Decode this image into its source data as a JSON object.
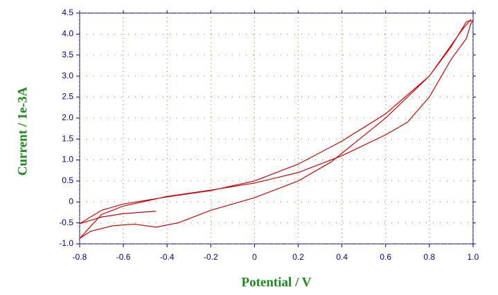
{
  "chart_data": {
    "type": "line",
    "x_label": "Potential / V",
    "y_label": "Current / 1e-3A",
    "xlim": [
      -0.8,
      1.0
    ],
    "ylim": [
      -1.0,
      4.5
    ],
    "xticks": [
      -0.8,
      -0.6,
      -0.4,
      -0.2,
      0,
      0.2,
      0.4,
      0.6,
      0.8,
      {
        "value": 1,
        "label": "1.0"
      }
    ],
    "yticks": [
      {
        "value": -1,
        "label": "-1.0"
      },
      -0.5,
      0,
      0.5,
      {
        "value": 1,
        "label": "1.0"
      },
      1.5,
      {
        "value": 2,
        "label": "2.0"
      },
      2.5,
      {
        "value": 3,
        "label": "3.0"
      },
      3.5,
      {
        "value": 4,
        "label": "4.0"
      },
      4.5
    ],
    "grid": true,
    "series": [
      {
        "color": "#cc0000",
        "x": [
          -0.45,
          -0.6,
          -0.7,
          -0.8,
          -0.7,
          -0.6,
          -0.4,
          -0.2,
          0,
          0.2,
          0.4,
          0.6,
          0.8,
          0.9,
          0.97,
          1.0,
          0.99,
          0.97,
          0.9,
          0.8,
          0.7,
          0.6,
          0.4,
          0.2,
          0,
          -0.2,
          -0.4,
          -0.6,
          -0.7,
          -0.8,
          -0.75,
          -0.65,
          -0.55,
          -0.45,
          -0.35,
          -0.2,
          0,
          0.2,
          0.35,
          0.6,
          0.8,
          0.95,
          0.99
        ],
        "values": [
          -0.22,
          -0.28,
          -0.36,
          -0.52,
          -0.2,
          -0.05,
          0.12,
          0.27,
          0.5,
          0.9,
          1.45,
          2.1,
          3.0,
          3.7,
          4.3,
          4.32,
          4.25,
          3.9,
          3.4,
          2.5,
          1.9,
          1.6,
          1.1,
          0.7,
          0.45,
          0.28,
          0.13,
          -0.1,
          -0.3,
          -0.87,
          -0.7,
          -0.57,
          -0.53,
          -0.6,
          -0.5,
          -0.2,
          0.1,
          0.5,
          0.95,
          2.0,
          3.0,
          4.1,
          4.35
        ]
      }
    ]
  }
}
